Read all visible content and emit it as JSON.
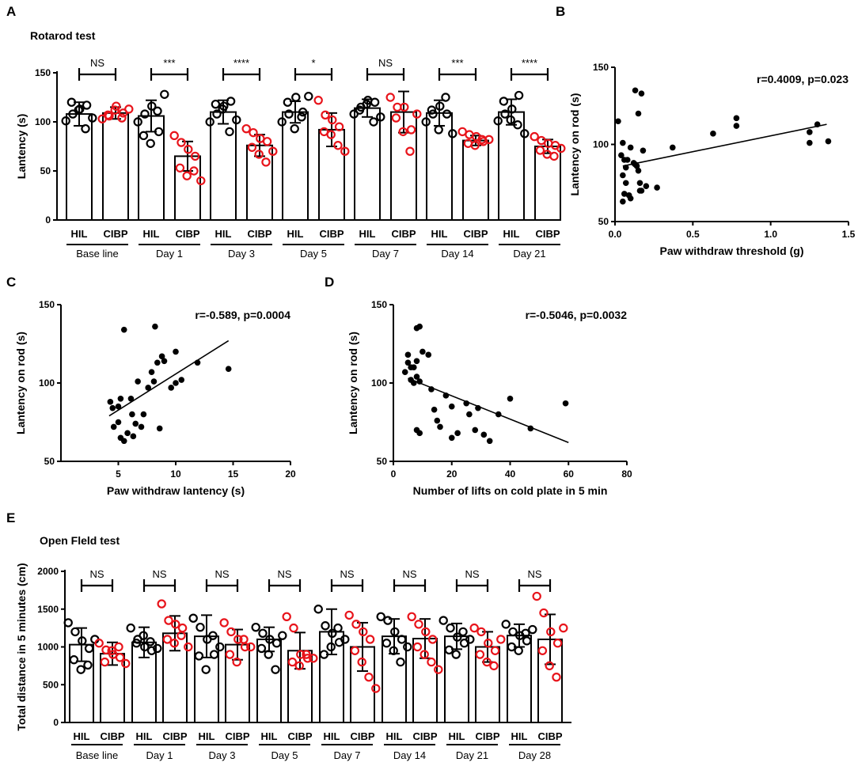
{
  "panels": {
    "A": {
      "label": "A",
      "title": "Rotarod test"
    },
    "B": {
      "label": "B"
    },
    "C": {
      "label": "C"
    },
    "D": {
      "label": "D"
    },
    "E": {
      "label": "E",
      "title": "Open Fleld test"
    }
  },
  "colors": {
    "control": "#000000",
    "cibp": "#e8141b"
  },
  "chart_data": [
    {
      "id": "A",
      "type": "bar",
      "title": "Rotarod test",
      "ylabel": "Lantency (s)",
      "ylim": [
        0,
        150
      ],
      "yticks": [
        0,
        50,
        100,
        150
      ],
      "group_labels": [
        "HIL",
        "CIBP"
      ],
      "categories": [
        "Base line",
        "Day 1",
        "Day 3",
        "Day 5",
        "Day 7",
        "Day 14",
        "Day 21"
      ],
      "significance": [
        "NS",
        "***",
        "****",
        "*",
        "NS",
        "***",
        "****"
      ],
      "series": [
        {
          "name": "HIL",
          "values": [
            108,
            106,
            110,
            110,
            114,
            109,
            110
          ],
          "sd": [
            12,
            16,
            12,
            11,
            9,
            13,
            13
          ],
          "points": [
            [
              101,
              108,
              113,
              117,
              120,
              112,
              93,
              104
            ],
            [
              100,
              108,
              116,
              90,
              86,
              78,
              111,
              128
            ],
            [
              100,
              108,
              116,
              121,
              118,
              113,
              90,
              102
            ],
            [
              100,
              108,
              125,
              110,
              120,
              93,
              105,
              126
            ],
            [
              108,
              115,
              122,
              120,
              112,
              118,
              100,
              105
            ],
            [
              100,
              108,
              116,
              108,
              112,
              92,
              125,
              88
            ],
            [
              101,
              108,
              113,
              127,
              121,
              102,
              97,
              88
            ]
          ]
        },
        {
          "name": "CIBP",
          "values": [
            109,
            65,
            76,
            92,
            110,
            81,
            75
          ],
          "sd": [
            6,
            15,
            11,
            17,
            21,
            5,
            7
          ],
          "points": [
            [
              103,
              106,
              116,
              109,
              107,
              112,
              104,
              113
            ],
            [
              86,
              79,
              72,
              65,
              53,
              45,
              50,
              40
            ],
            [
              93,
              89,
              83,
              80,
              74,
              67,
              59,
              70
            ],
            [
              122,
              107,
              102,
              95,
              90,
              87,
              76,
              70
            ],
            [
              125,
              115,
              115,
              92,
              104,
              90,
              70,
              108
            ],
            [
              90,
              87,
              85,
              80,
              78,
              76,
              82,
              82
            ],
            [
              85,
              81,
              78,
              76,
              71,
              67,
              65,
              73
            ]
          ]
        }
      ]
    },
    {
      "id": "B",
      "type": "scatter",
      "xlabel": "Paw withdraw threshold (g)",
      "ylabel": "Lantency on rod (s)",
      "xlim": [
        0,
        1.5
      ],
      "ylim": [
        50,
        150
      ],
      "xticks": [
        "0.0",
        "0.5",
        "1.0",
        "1.5"
      ],
      "yticks": [
        "50",
        "100",
        "150"
      ],
      "annotation": "r=0.4009, p=0.023",
      "fit": {
        "x": [
          0.05,
          1.36
        ],
        "y": [
          86,
          113
        ]
      },
      "points": [
        [
          0.02,
          115
        ],
        [
          0.05,
          101
        ],
        [
          0.04,
          93
        ],
        [
          0.06,
          90
        ],
        [
          0.07,
          85
        ],
        [
          0.08,
          90
        ],
        [
          0.05,
          80
        ],
        [
          0.07,
          75
        ],
        [
          0.06,
          68
        ],
        [
          0.09,
          67
        ],
        [
          0.1,
          65
        ],
        [
          0.05,
          63
        ],
        [
          0.12,
          88
        ],
        [
          0.13,
          87
        ],
        [
          0.14,
          86
        ],
        [
          0.15,
          83
        ],
        [
          0.16,
          75
        ],
        [
          0.17,
          70
        ],
        [
          0.18,
          96
        ],
        [
          0.2,
          73
        ],
        [
          0.27,
          72
        ],
        [
          0.13,
          135
        ],
        [
          0.17,
          133
        ],
        [
          0.15,
          120
        ],
        [
          0.37,
          98
        ],
        [
          0.63,
          107
        ],
        [
          0.78,
          117
        ],
        [
          0.78,
          112
        ],
        [
          1.25,
          108
        ],
        [
          1.25,
          101
        ],
        [
          1.3,
          113
        ],
        [
          1.37,
          102
        ],
        [
          0.1,
          98
        ],
        [
          0.16,
          70
        ]
      ]
    },
    {
      "id": "C",
      "type": "scatter",
      "xlabel": "Paw withdraw lantency (s)",
      "ylabel": "Lantency on rod (s)",
      "xlim": [
        0,
        20
      ],
      "ylim": [
        50,
        150
      ],
      "xticks": [
        "5",
        "10",
        "15",
        "20"
      ],
      "yticks": [
        "50",
        "100",
        "150"
      ],
      "annotation": "r=-0.589, p=0.0004",
      "fit": {
        "x": [
          4.2,
          14.6
        ],
        "y": [
          79,
          127
        ]
      },
      "points": [
        [
          4.3,
          88
        ],
        [
          4.5,
          84
        ],
        [
          5.0,
          85
        ],
        [
          4.6,
          72
        ],
        [
          5.0,
          75
        ],
        [
          5.2,
          65
        ],
        [
          5.5,
          63
        ],
        [
          5.8,
          68
        ],
        [
          6.3,
          66
        ],
        [
          6.5,
          74
        ],
        [
          7.0,
          72
        ],
        [
          7.2,
          80
        ],
        [
          6.1,
          90
        ],
        [
          6.7,
          101
        ],
        [
          7.6,
          97
        ],
        [
          8.1,
          101
        ],
        [
          8.6,
          71
        ],
        [
          7.9,
          107
        ],
        [
          8.4,
          113
        ],
        [
          8.8,
          117
        ],
        [
          9.0,
          114
        ],
        [
          10.0,
          120
        ],
        [
          9.6,
          97
        ],
        [
          10.0,
          100
        ],
        [
          10.5,
          102
        ],
        [
          11.9,
          113
        ],
        [
          14.6,
          109
        ],
        [
          5.5,
          134
        ],
        [
          8.2,
          136
        ],
        [
          6.2,
          80
        ],
        [
          5.2,
          90
        ]
      ]
    },
    {
      "id": "D",
      "type": "scatter",
      "xlabel": "Number of lifts on cold plate in 5 min",
      "ylabel": "Lantency on rod (s)",
      "xlim": [
        0,
        80
      ],
      "ylim": [
        50,
        150
      ],
      "xticks": [
        "0",
        "20",
        "40",
        "60",
        "80"
      ],
      "yticks": [
        "50",
        "100",
        "150"
      ],
      "annotation": "r=-0.5046, p=0.0032",
      "fit": {
        "x": [
          5,
          60
        ],
        "y": [
          103,
          62
        ]
      },
      "points": [
        [
          4,
          107
        ],
        [
          5,
          113
        ],
        [
          5,
          118
        ],
        [
          6,
          110
        ],
        [
          6,
          102
        ],
        [
          7,
          110
        ],
        [
          7,
          100
        ],
        [
          8,
          114
        ],
        [
          8,
          104
        ],
        [
          8,
          135
        ],
        [
          9,
          136
        ],
        [
          9,
          101
        ],
        [
          10,
          120
        ],
        [
          12,
          118
        ],
        [
          13,
          96
        ],
        [
          14,
          83
        ],
        [
          15,
          76
        ],
        [
          16,
          72
        ],
        [
          18,
          92
        ],
        [
          20,
          65
        ],
        [
          20,
          85
        ],
        [
          25,
          87
        ],
        [
          26,
          80
        ],
        [
          29,
          84
        ],
        [
          31,
          67
        ],
        [
          33,
          63
        ],
        [
          36,
          80
        ],
        [
          40,
          90
        ],
        [
          47,
          71
        ],
        [
          59,
          87
        ],
        [
          8,
          70
        ],
        [
          9,
          68
        ],
        [
          22,
          68
        ],
        [
          28,
          70
        ]
      ]
    },
    {
      "id": "E",
      "type": "bar",
      "title": "Open Fleld test",
      "ylabel": "Total distance in 5 minutes (cm)",
      "ylim": [
        0,
        2000
      ],
      "yticks": [
        0,
        500,
        1000,
        1500,
        2000
      ],
      "group_labels": [
        "HIL",
        "CIBP"
      ],
      "categories": [
        "Base line",
        "Day 1",
        "Day 3",
        "Day 5",
        "Day 7",
        "Day 14",
        "Day 21",
        "Day 28"
      ],
      "significance": [
        "NS",
        "NS",
        "NS",
        "NS",
        "NS",
        "NS",
        "NS",
        "NS"
      ],
      "series": [
        {
          "name": "HIL",
          "values": [
            1030,
            1060,
            1140,
            1100,
            1200,
            1140,
            1140,
            1150
          ],
          "sd": [
            220,
            200,
            280,
            160,
            300,
            230,
            170,
            150
          ],
          "points": [
            [
              1320,
              1200,
              1080,
              980,
              830,
              700,
              760,
              1100
            ],
            [
              1250,
              1100,
              1000,
              950,
              1050,
              1150,
              1070,
              980
            ],
            [
              1380,
              1260,
              1100,
              900,
              880,
              700,
              1150,
              1000
            ],
            [
              1260,
              1180,
              1100,
              1050,
              980,
              900,
              700,
              1150
            ],
            [
              1500,
              1280,
              1180,
              1060,
              900,
              1000,
              1250,
              1100
            ],
            [
              1400,
              1350,
              1200,
              1100,
              1050,
              950,
              800,
              1000
            ],
            [
              1350,
              1250,
              1130,
              1050,
              960,
              900,
              1200,
              1100
            ],
            [
              1300,
              1200,
              1150,
              1080,
              1000,
              950,
              1180,
              1230
            ]
          ]
        },
        {
          "name": "CIBP",
          "values": [
            910,
            1180,
            1030,
            950,
            1000,
            1110,
            1000,
            1100
          ],
          "sd": [
            150,
            230,
            200,
            240,
            320,
            260,
            200,
            330
          ],
          "points": [
            [
              1050,
              960,
              900,
              860,
              800,
              950,
              1000,
              780
            ],
            [
              1570,
              1350,
              1300,
              1250,
              1100,
              1050,
              1150,
              1000
            ],
            [
              1320,
              1200,
              1100,
              1000,
              900,
              800,
              1100,
              1000
            ],
            [
              1400,
              1250,
              900,
              850,
              800,
              750,
              900,
              850
            ],
            [
              1420,
              1300,
              1200,
              1100,
              950,
              800,
              600,
              450
            ],
            [
              1400,
              1300,
              1200,
              1100,
              1000,
              900,
              800,
              700
            ],
            [
              1250,
              1200,
              1050,
              950,
              900,
              800,
              750,
              1100
            ],
            [
              1670,
              1450,
              1200,
              1050,
              950,
              750,
              600,
              1250
            ]
          ]
        }
      ]
    }
  ]
}
